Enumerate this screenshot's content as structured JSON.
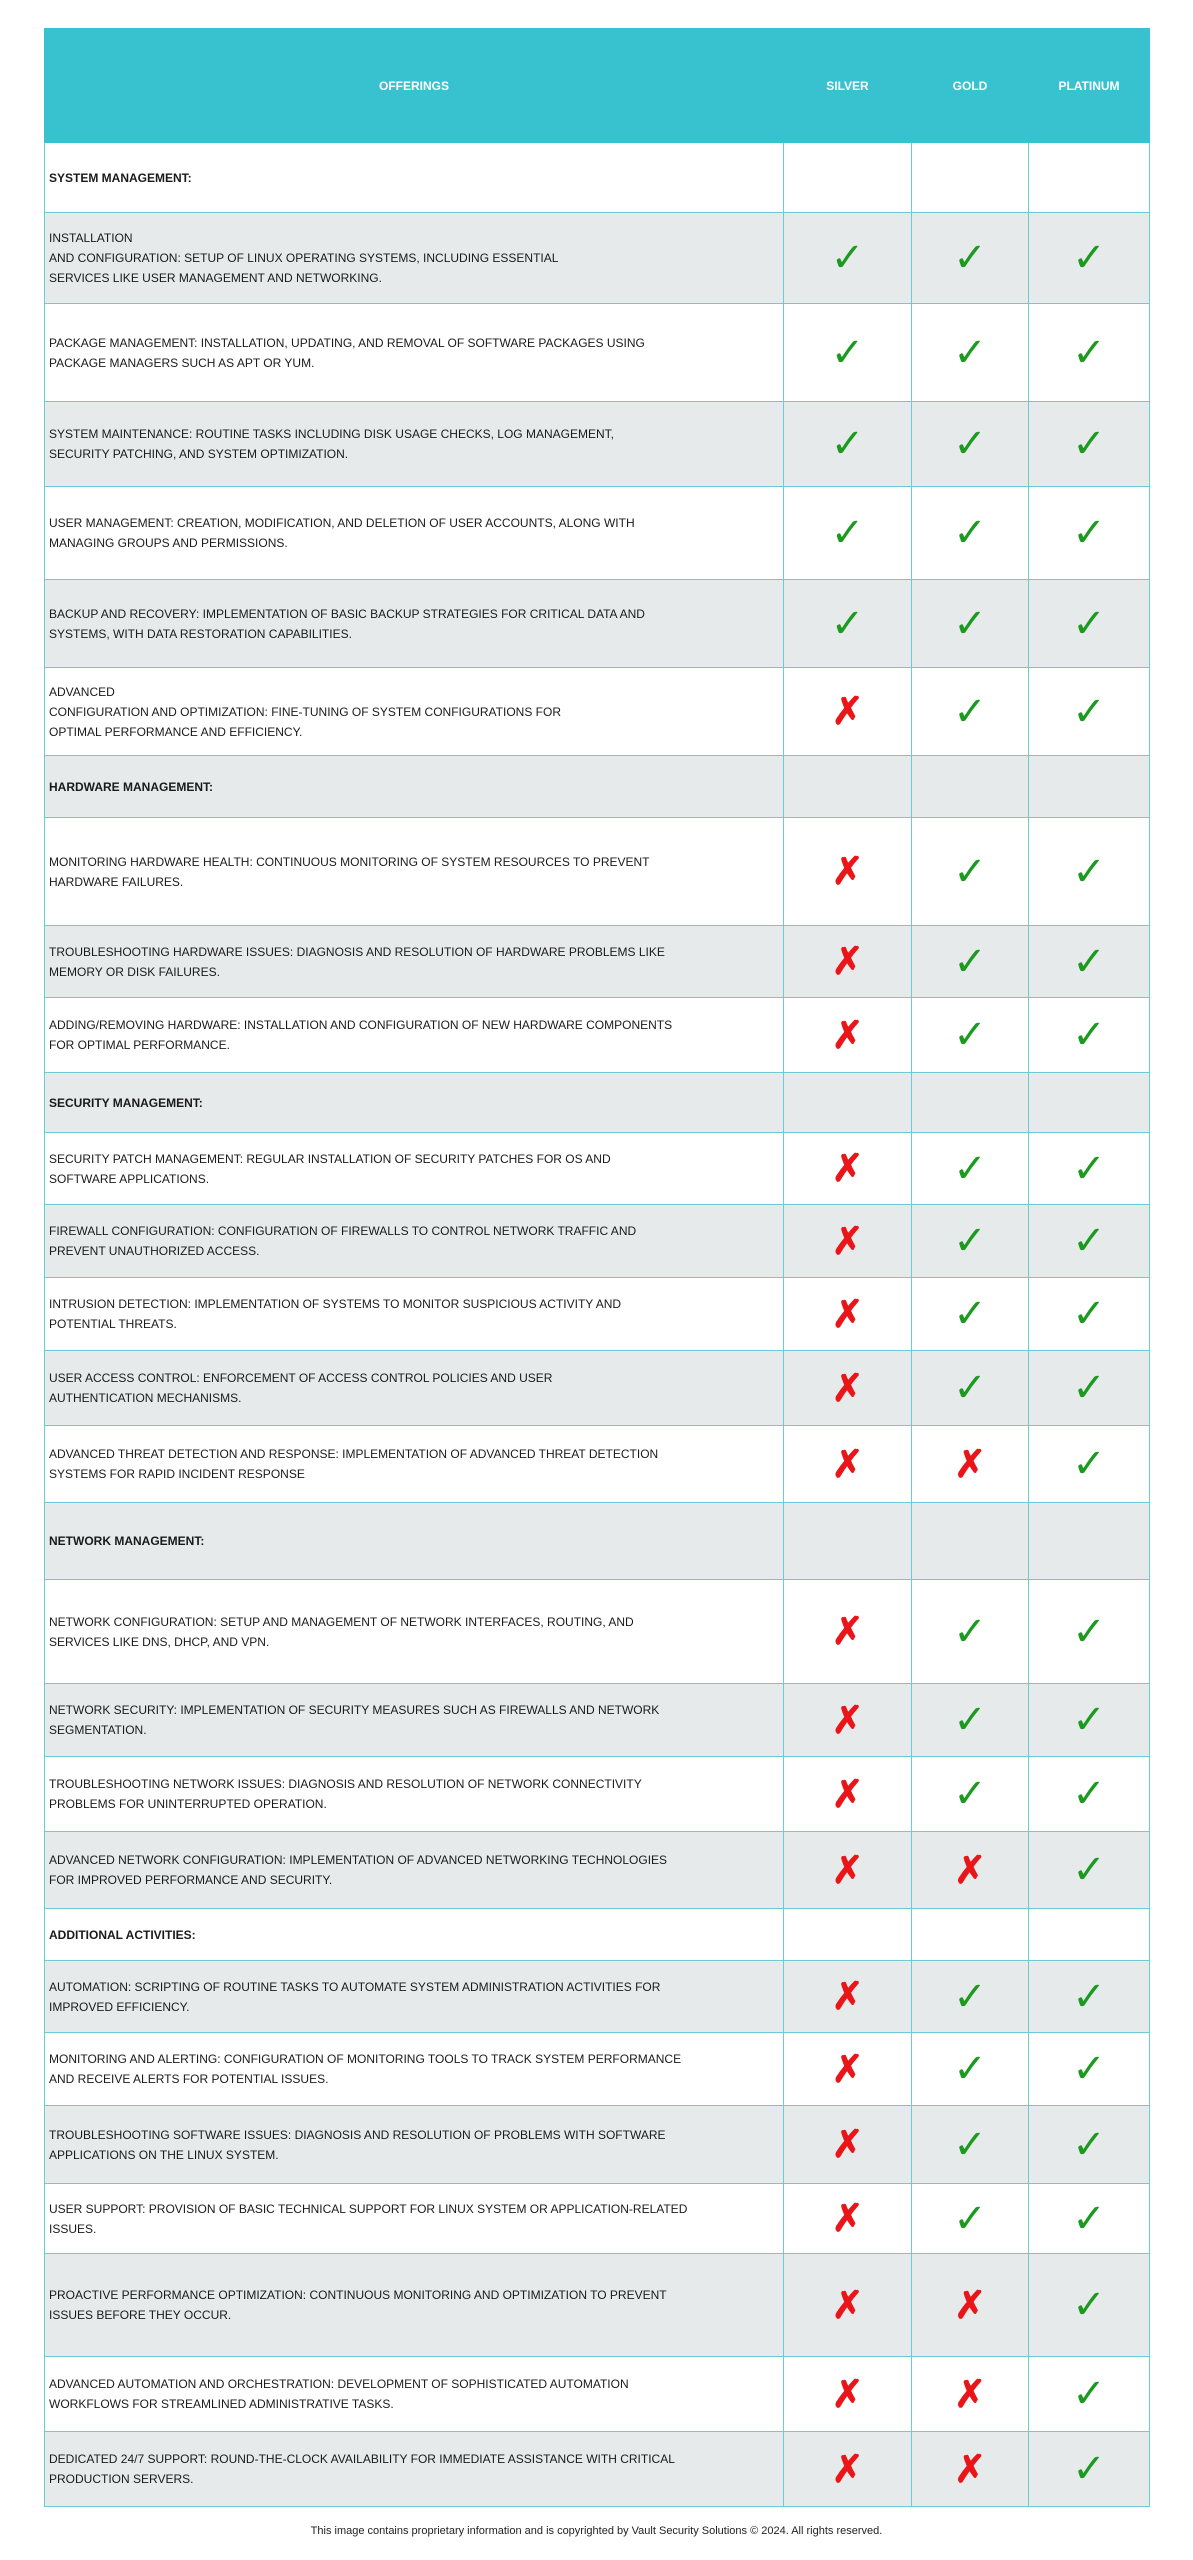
{
  "header": {
    "offerings": "OFFERINGS",
    "silver": "SILVER",
    "gold": "GOLD",
    "platinum": "PLATINUM"
  },
  "colors": {
    "header_bg": "#38c1cf",
    "border": "#6ccbd6",
    "check": "#1b9a1f",
    "cross": "#ea1519",
    "alt_row": "#e7eaea"
  },
  "icons": {
    "yes": "checkmark-icon",
    "no": "cross-icon"
  },
  "rows": [
    {
      "type": "section",
      "text": "SYSTEM MANAGEMENT:"
    },
    {
      "type": "item",
      "text": "INSTALLATION\nAND CONFIGURATION: SETUP OF LINUX OPERATING SYSTEMS, INCLUDING ESSENTIAL\nSERVICES LIKE USER MANAGEMENT AND NETWORKING.",
      "silver": true,
      "gold": true,
      "platinum": true
    },
    {
      "type": "item",
      "text": "PACKAGE MANAGEMENT: INSTALLATION, UPDATING, AND REMOVAL OF SOFTWARE PACKAGES USING\nPACKAGE MANAGERS SUCH AS APT OR YUM.",
      "silver": true,
      "gold": true,
      "platinum": true
    },
    {
      "type": "item",
      "text": "SYSTEM MAINTENANCE: ROUTINE TASKS INCLUDING DISK USAGE CHECKS, LOG MANAGEMENT,\nSECURITY PATCHING, AND SYSTEM OPTIMIZATION.",
      "silver": true,
      "gold": true,
      "platinum": true
    },
    {
      "type": "item",
      "text": "USER MANAGEMENT: CREATION, MODIFICATION, AND DELETION OF USER ACCOUNTS, ALONG WITH\nMANAGING GROUPS AND PERMISSIONS.",
      "silver": true,
      "gold": true,
      "platinum": true
    },
    {
      "type": "item",
      "text": "BACKUP AND RECOVERY: IMPLEMENTATION OF BASIC BACKUP STRATEGIES FOR CRITICAL DATA AND\nSYSTEMS, WITH DATA RESTORATION CAPABILITIES.",
      "silver": true,
      "gold": true,
      "platinum": true
    },
    {
      "type": "item",
      "text": "ADVANCED\nCONFIGURATION AND OPTIMIZATION: FINE-TUNING OF SYSTEM CONFIGURATIONS FOR\nOPTIMAL PERFORMANCE AND EFFICIENCY.",
      "silver": false,
      "gold": true,
      "platinum": true
    },
    {
      "type": "section",
      "text": "HARDWARE MANAGEMENT:"
    },
    {
      "type": "item",
      "text": "MONITORING HARDWARE HEALTH: CONTINUOUS MONITORING OF SYSTEM RESOURCES TO PREVENT\nHARDWARE FAILURES.",
      "silver": false,
      "gold": true,
      "platinum": true
    },
    {
      "type": "item",
      "text": "TROUBLESHOOTING HARDWARE ISSUES: DIAGNOSIS AND RESOLUTION OF HARDWARE PROBLEMS LIKE\nMEMORY OR DISK FAILURES.",
      "silver": false,
      "gold": true,
      "platinum": true
    },
    {
      "type": "item",
      "text": "ADDING/REMOVING HARDWARE: INSTALLATION AND CONFIGURATION OF NEW HARDWARE COMPONENTS\nFOR OPTIMAL PERFORMANCE.",
      "silver": false,
      "gold": true,
      "platinum": true
    },
    {
      "type": "section",
      "text": "SECURITY MANAGEMENT:"
    },
    {
      "type": "item",
      "text": "SECURITY PATCH MANAGEMENT: REGULAR INSTALLATION OF SECURITY PATCHES FOR OS AND\nSOFTWARE APPLICATIONS.",
      "silver": false,
      "gold": true,
      "platinum": true
    },
    {
      "type": "item",
      "text": "FIREWALL CONFIGURATION: CONFIGURATION OF FIREWALLS TO CONTROL NETWORK TRAFFIC AND\nPREVENT UNAUTHORIZED ACCESS.",
      "silver": false,
      "gold": true,
      "platinum": true
    },
    {
      "type": "item",
      "text": "INTRUSION DETECTION: IMPLEMENTATION OF SYSTEMS TO MONITOR SUSPICIOUS ACTIVITY AND\nPOTENTIAL THREATS.",
      "silver": false,
      "gold": true,
      "platinum": true
    },
    {
      "type": "item",
      "text": "USER ACCESS CONTROL: ENFORCEMENT OF ACCESS CONTROL POLICIES AND USER\nAUTHENTICATION MECHANISMS.",
      "silver": false,
      "gold": true,
      "platinum": true
    },
    {
      "type": "item",
      "text": "ADVANCED THREAT DETECTION AND RESPONSE: IMPLEMENTATION OF ADVANCED THREAT DETECTION\nSYSTEMS FOR RAPID INCIDENT RESPONSE",
      "silver": false,
      "gold": false,
      "platinum": true
    },
    {
      "type": "section",
      "text": "NETWORK MANAGEMENT:"
    },
    {
      "type": "item",
      "text": "NETWORK CONFIGURATION: SETUP AND MANAGEMENT OF NETWORK INTERFACES, ROUTING, AND\nSERVICES LIKE DNS, DHCP, AND VPN.",
      "silver": false,
      "gold": true,
      "platinum": true
    },
    {
      "type": "item",
      "text": "NETWORK SECURITY: IMPLEMENTATION OF SECURITY MEASURES SUCH AS FIREWALLS AND      NETWORK\nSEGMENTATION.",
      "silver": false,
      "gold": true,
      "platinum": true
    },
    {
      "type": "item",
      "text": "TROUBLESHOOTING NETWORK ISSUES: DIAGNOSIS AND RESOLUTION OF NETWORK CONNECTIVITY\nPROBLEMS FOR UNINTERRUPTED OPERATION.",
      "silver": false,
      "gold": true,
      "platinum": true
    },
    {
      "type": "item",
      "text": "ADVANCED NETWORK CONFIGURATION: IMPLEMENTATION OF ADVANCED NETWORKING TECHNOLOGIES\nFOR IMPROVED PERFORMANCE AND SECURITY.",
      "silver": false,
      "gold": false,
      "platinum": true
    },
    {
      "type": "section",
      "text": "ADDITIONAL ACTIVITIES:"
    },
    {
      "type": "item",
      "text": "AUTOMATION: SCRIPTING OF ROUTINE TASKS TO AUTOMATE SYSTEM ADMINISTRATION ACTIVITIES FOR\nIMPROVED EFFICIENCY.",
      "silver": false,
      "gold": true,
      "platinum": true
    },
    {
      "type": "item",
      "text": "MONITORING AND ALERTING: CONFIGURATION OF MONITORING TOOLS TO TRACK SYSTEM PERFORMANCE\nAND RECEIVE ALERTS FOR POTENTIAL ISSUES.",
      "silver": false,
      "gold": true,
      "platinum": true
    },
    {
      "type": "item",
      "text": "TROUBLESHOOTING SOFTWARE ISSUES: DIAGNOSIS AND RESOLUTION OF PROBLEMS WITH SOFTWARE\nAPPLICATIONS ON THE LINUX SYSTEM.",
      "silver": false,
      "gold": true,
      "platinum": true
    },
    {
      "type": "item",
      "text": "USER SUPPORT: PROVISION OF BASIC TECHNICAL SUPPORT FOR LINUX SYSTEM OR APPLICATION-RELATED\nISSUES.",
      "silver": false,
      "gold": true,
      "platinum": true
    },
    {
      "type": "item",
      "text": "PROACTIVE PERFORMANCE OPTIMIZATION: CONTINUOUS MONITORING AND OPTIMIZATION TO PREVENT\nISSUES BEFORE THEY OCCUR.",
      "silver": false,
      "gold": false,
      "platinum": true
    },
    {
      "type": "item",
      "text": "ADVANCED AUTOMATION AND ORCHESTRATION: DEVELOPMENT OF SOPHISTICATED AUTOMATION\nWORKFLOWS FOR STREAMLINED ADMINISTRATIVE TASKS.",
      "silver": false,
      "gold": false,
      "platinum": true
    },
    {
      "type": "item",
      "text": "DEDICATED 24/7 SUPPORT: ROUND-THE-CLOCK  AVAILABILITY FOR IMMEDIATE ASSISTANCE WITH CRITICAL\nPRODUCTION SERVERS.",
      "silver": false,
      "gold": false,
      "platinum": true
    }
  ],
  "footer": "This image contains proprietary information and is copyrighted by Vault Security Solutions © 2024. All rights reserved."
}
